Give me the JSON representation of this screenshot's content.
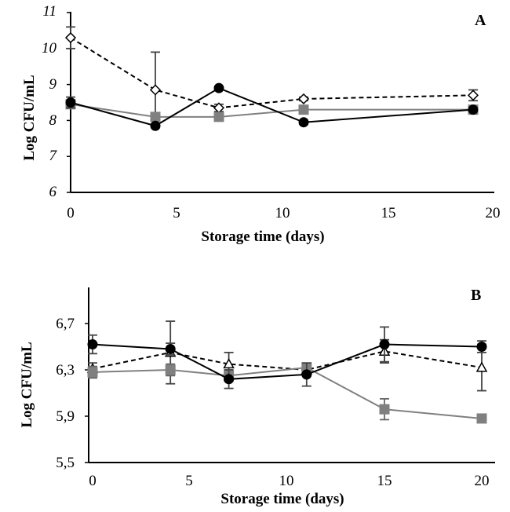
{
  "chart_data": [
    {
      "type": "line",
      "panel_label": "A",
      "xlabel": "Storage time (days)",
      "ylabel": "Log CFU/mL",
      "xlim": [
        0,
        20
      ],
      "ylim": [
        6,
        11
      ],
      "x_ticks": [
        "0",
        "5",
        "10",
        "15",
        "20"
      ],
      "y_ticks": [
        "6",
        "7",
        "8",
        "9",
        "10",
        "11"
      ],
      "series": [
        {
          "name": "diamond (dashed)",
          "marker": "diamond-open",
          "line": "dashed",
          "color": "#000000",
          "x": [
            0,
            4,
            7,
            11,
            19
          ],
          "y": [
            10.3,
            8.85,
            8.35,
            8.6,
            8.7
          ],
          "err": [
            0.3,
            1.05,
            0.1,
            0.05,
            0.15
          ]
        },
        {
          "name": "square (grey)",
          "marker": "square",
          "line": "solid",
          "color": "#808080",
          "x": [
            0,
            4,
            7,
            11,
            19
          ],
          "y": [
            8.45,
            8.1,
            8.1,
            8.3,
            8.3
          ],
          "err": [
            0.1,
            0.1,
            0.1,
            0.1,
            0.05
          ]
        },
        {
          "name": "circle (black)",
          "marker": "circle",
          "line": "solid",
          "color": "#000000",
          "x": [
            0,
            4,
            7,
            11,
            19
          ],
          "y": [
            8.5,
            7.85,
            8.9,
            7.95,
            8.3
          ],
          "err": [
            0.15,
            0.05,
            0.05,
            0.05,
            0.05
          ]
        }
      ]
    },
    {
      "type": "line",
      "panel_label": "B",
      "xlabel": "Storage time (days)",
      "ylabel": "Log  CFU/mL",
      "xlim": [
        0,
        20
      ],
      "ylim": [
        5.5,
        7.0
      ],
      "x_ticks": [
        "0",
        "5",
        "10",
        "15",
        "20"
      ],
      "y_ticks": [
        "5,5",
        "5,9",
        "6,3",
        "6,7"
      ],
      "y_tick_values": [
        5.5,
        5.9,
        6.3,
        6.7
      ],
      "series": [
        {
          "name": "triangle (dashed)",
          "marker": "triangle-open",
          "line": "dashed",
          "color": "#000000",
          "x": [
            0,
            4,
            7,
            11,
            15,
            20
          ],
          "y": [
            6.31,
            6.45,
            6.35,
            6.3,
            6.46,
            6.32
          ],
          "err": [
            0.05,
            0.27,
            0.1,
            0.05,
            0.1,
            0.2
          ]
        },
        {
          "name": "square (grey)",
          "marker": "square",
          "line": "solid",
          "color": "#808080",
          "x": [
            0,
            4,
            7,
            11,
            15,
            20
          ],
          "y": [
            6.28,
            6.3,
            6.25,
            6.32,
            5.96,
            5.88
          ],
          "err": [
            0.05,
            0.05,
            0.05,
            0.03,
            0.09,
            0.02
          ]
        },
        {
          "name": "circle (black)",
          "marker": "circle",
          "line": "solid",
          "color": "#000000",
          "x": [
            0,
            4,
            7,
            11,
            15,
            20
          ],
          "y": [
            6.52,
            6.48,
            6.22,
            6.26,
            6.52,
            6.5
          ],
          "err": [
            0.08,
            0.05,
            0.08,
            0.1,
            0.15,
            0.05
          ]
        }
      ]
    }
  ]
}
